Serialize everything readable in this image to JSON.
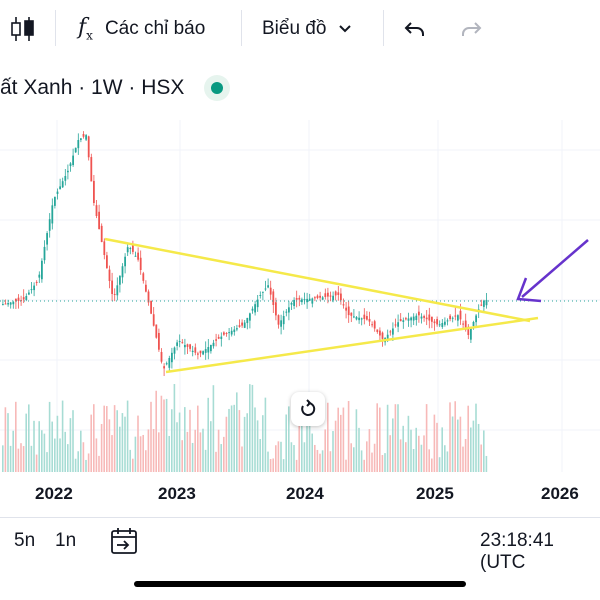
{
  "toolbar": {
    "indicators_label": "Các chỉ báo",
    "chart_type_label": "Biểu đồ",
    "icons": [
      "candlestick-icon",
      "function-icon",
      "chevron-down-icon",
      "undo-icon",
      "redo-icon"
    ]
  },
  "symbol": {
    "title": "ất Xanh · 1W · HSX",
    "status_color": "#089981"
  },
  "chart_data": {
    "type": "candlestick",
    "x_ticks": [
      "2022",
      "2023",
      "2024",
      "2025",
      "2026"
    ],
    "up_color": "#26a69a",
    "down_color": "#ef5350",
    "trendline_color": "#f5e94a",
    "annotation_arrow_color": "#6633cc",
    "grid": true,
    "volume_pane": true
  },
  "bottom_bar": {
    "range_5n": "5n",
    "range_1n": "1n",
    "clock": "23:18:41 (UTC"
  }
}
